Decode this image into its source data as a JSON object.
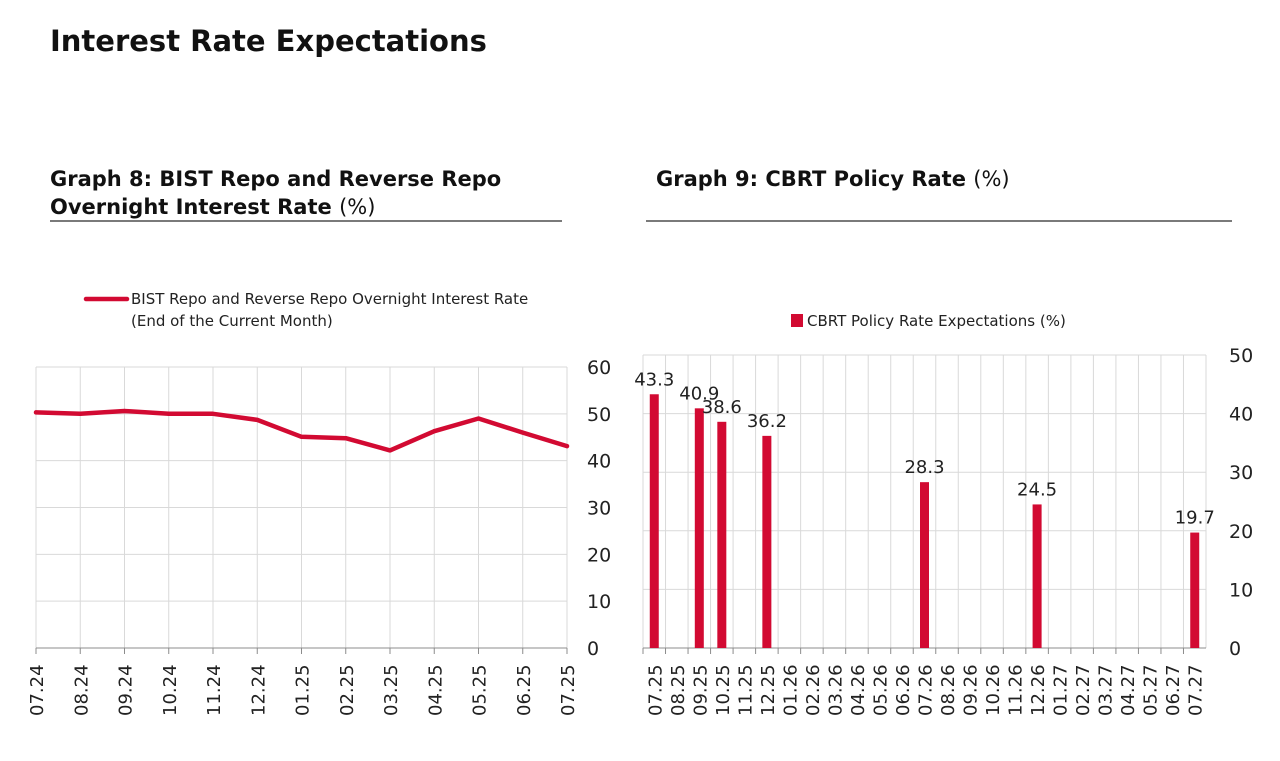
{
  "page": {
    "title": "Interest Rate Expectations"
  },
  "colors": {
    "accent": "#d20a32",
    "grid": "#d9d9d9",
    "axis": "#8c8c8c"
  },
  "graph8": {
    "title_bold": "Graph 8: BIST Repo and Reverse Repo Overnight Interest Rate",
    "title_unit": "(%)"
  },
  "graph9": {
    "title_bold": "Graph 9: CBRT Policy Rate",
    "title_unit": "(%)"
  },
  "chart_data": [
    {
      "type": "line",
      "legend": [
        "BIST Repo and Reverse Repo Overnight Interest Rate",
        "(End of the Current Month)"
      ],
      "categories": [
        "07.24",
        "08.24",
        "09.24",
        "10.24",
        "11.24",
        "12.24",
        "01.25",
        "02.25",
        "03.25",
        "04.25",
        "05.25",
        "06.25",
        "07.25"
      ],
      "series": [
        {
          "name": "BIST Repo and Reverse Repo Overnight Interest Rate (End of the Current Month)",
          "values": [
            50.3,
            50.0,
            50.6,
            50.0,
            50.0,
            48.7,
            45.1,
            44.8,
            42.2,
            46.3,
            49.0,
            46.0,
            43.1
          ]
        }
      ],
      "yticks": [
        0,
        10,
        20,
        30,
        40,
        50,
        60
      ],
      "ylim": [
        0,
        60
      ],
      "yaxis_side": "right"
    },
    {
      "type": "bar",
      "legend": "CBRT Policy Rate Expectations (%)",
      "categories": [
        "07.25",
        "08.25",
        "09.25",
        "10.25",
        "11.25",
        "12.25",
        "01.26",
        "02.26",
        "03.26",
        "04.26",
        "05.26",
        "06.26",
        "07.26",
        "08.26",
        "09.26",
        "10.26",
        "11.26",
        "12.26",
        "01.27",
        "02.27",
        "03.27",
        "04.27",
        "05.27",
        "06.27",
        "07.27"
      ],
      "bars": [
        {
          "category": "07.25",
          "value": 43.3,
          "label": "43.3"
        },
        {
          "category": "09.25",
          "value": 40.9,
          "label": "40.9"
        },
        {
          "category": "10.25",
          "value": 38.6,
          "label": "38.6"
        },
        {
          "category": "12.25",
          "value": 36.2,
          "label": "36.2"
        },
        {
          "category": "07.26",
          "value": 28.3,
          "label": "28.3"
        },
        {
          "category": "12.26",
          "value": 24.5,
          "label": "24.5"
        },
        {
          "category": "07.27",
          "value": 19.7,
          "label": "19.7"
        }
      ],
      "yticks": [
        0,
        10,
        20,
        30,
        40,
        50
      ],
      "ylim": [
        0,
        50
      ],
      "yaxis_side": "right"
    }
  ]
}
